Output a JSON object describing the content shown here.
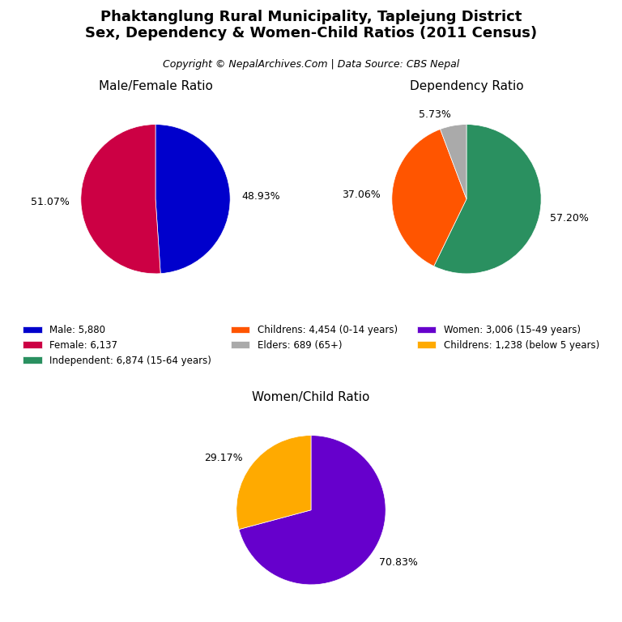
{
  "title": "Phaktanglung Rural Municipality, Taplejung District\nSex, Dependency & Women-Child Ratios (2011 Census)",
  "subtitle": "Copyright © NepalArchives.Com | Data Source: CBS Nepal",
  "legend": "center",
  "chart_data": [
    {
      "type": "pie",
      "title": "Male/Female Ratio",
      "categories": [
        "Male: 5,880",
        "Female: 6,137"
      ],
      "values": [
        48.93,
        51.07
      ],
      "value_labels": [
        "48.93%",
        "51.07%"
      ],
      "colors": [
        "#0000cc",
        "#cc0044"
      ]
    },
    {
      "type": "pie",
      "title": "Dependency Ratio",
      "categories": [
        "Independent: 6,874 (15-64 years)",
        "Childrens: 4,454 (0-14 years)",
        "Elders: 689 (65+)"
      ],
      "values": [
        57.2,
        37.06,
        5.73
      ],
      "value_labels": [
        "57.20%",
        "37.06%",
        "5.73%"
      ],
      "colors": [
        "#2a9060",
        "#ff5500",
        "#aaaaaa"
      ]
    },
    {
      "type": "pie",
      "title": "Women/Child Ratio",
      "categories": [
        "Women: 3,006 (15-49 years)",
        "Childrens: 1,238 (below 5 years)"
      ],
      "values": [
        70.83,
        29.17
      ],
      "value_labels": [
        "70.83%",
        "29.17%"
      ],
      "colors": [
        "#6600cc",
        "#ffaa00"
      ]
    }
  ]
}
